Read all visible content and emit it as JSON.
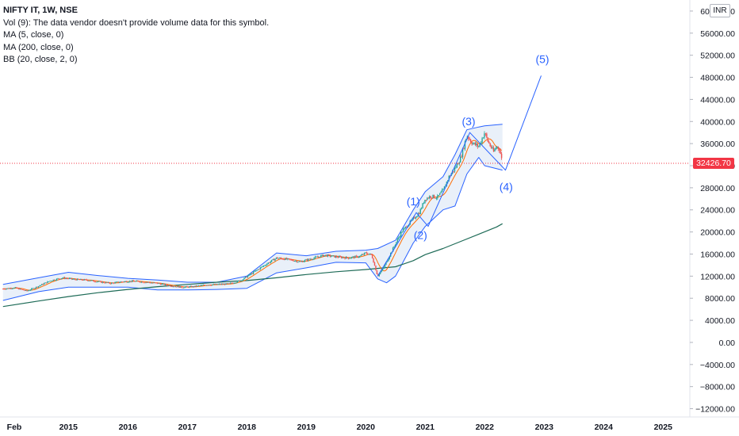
{
  "legend": {
    "symbol": "NIFTY IT, 1W, NSE",
    "volume": "Vol (9): The data vendor doesn't provide volume data for this symbol.",
    "ma5": "MA (5, close, 0)",
    "ma200": "MA (200, close, 0)",
    "bb": "BB (20, close, 2, 0)"
  },
  "currency_badge": "INR",
  "current_price_label": "32426.70",
  "colors": {
    "up": "#26a69a",
    "down": "#ef5350",
    "bb_band": "#2962ff",
    "bb_fill": "#e9f0f9",
    "ma5": "#ff6d00",
    "ma200": "#1e6b57",
    "wave": "#2962ff",
    "price_line": "#f23645"
  },
  "chart_data": {
    "type": "line",
    "title": "NIFTY IT, 1W, NSE",
    "y_unit": "INR",
    "ylim": [
      -13500,
      62000
    ],
    "xlim": [
      2013.85,
      2025.45
    ],
    "y_ticks": [
      60000,
      56000,
      52000,
      48000,
      44000,
      40000,
      36000,
      32000,
      28000,
      24000,
      20000,
      16000,
      12000,
      8000,
      4000,
      0,
      -4000,
      -8000,
      -12000
    ],
    "y_tick_labels": [
      "60000.00",
      "56000.00",
      "52000.00",
      "48000.00",
      "44000.00",
      "40000.00",
      "36000.00",
      "32000.00",
      "28000.00",
      "24000.00",
      "20000.00",
      "16000.00",
      "12000.00",
      "8000.00",
      "4000.00",
      "0.00",
      "−4000.00",
      "−8000.00",
      "−12000.00"
    ],
    "x_ticks": [
      2014.09,
      2015,
      2016,
      2017,
      2018,
      2019,
      2020,
      2021,
      2022,
      2023,
      2024,
      2025
    ],
    "x_tick_labels": [
      "Feb",
      "2015",
      "2016",
      "2017",
      "2018",
      "2019",
      "2020",
      "2021",
      "2022",
      "2023",
      "2024",
      "2025"
    ],
    "current_price": 32426.7,
    "series": [
      {
        "name": "NIFTY IT",
        "x": [
          2013.9,
          2014.1,
          2014.3,
          2014.5,
          2014.7,
          2014.9,
          2015.1,
          2015.3,
          2015.5,
          2015.7,
          2015.9,
          2016.1,
          2016.3,
          2016.5,
          2016.7,
          2016.9,
          2017.1,
          2017.3,
          2017.5,
          2017.7,
          2017.9,
          2018.1,
          2018.3,
          2018.5,
          2018.7,
          2018.9,
          2019.1,
          2019.3,
          2019.5,
          2019.7,
          2019.9,
          2020.0,
          2020.1,
          2020.2,
          2020.3,
          2020.45,
          2020.6,
          2020.75,
          2020.9,
          2021.0,
          2021.1,
          2021.2,
          2021.3,
          2021.4,
          2021.5,
          2021.6,
          2021.7,
          2021.8,
          2021.9,
          2022.0,
          2022.05,
          2022.15,
          2022.2,
          2022.25,
          2022.3
        ],
        "values": [
          9700,
          9900,
          9300,
          10200,
          11200,
          11700,
          11400,
          11300,
          11000,
          10700,
          11000,
          11100,
          10900,
          10700,
          10300,
          10000,
          10100,
          10400,
          10500,
          10600,
          11200,
          12600,
          14000,
          15300,
          15000,
          14600,
          15200,
          15800,
          15500,
          15300,
          15600,
          16200,
          15800,
          12000,
          13500,
          16800,
          20000,
          21800,
          23500,
          26000,
          26500,
          26200,
          27500,
          30000,
          31500,
          33500,
          37500,
          36000,
          35500,
          38000,
          36500,
          34500,
          35500,
          35000,
          32427
        ]
      },
      {
        "name": "BB upper",
        "x": [
          2013.9,
          2014.5,
          2015.0,
          2015.5,
          2016.0,
          2016.5,
          2017.0,
          2017.5,
          2018.0,
          2018.5,
          2019.0,
          2019.5,
          2020.0,
          2020.2,
          2020.5,
          2020.8,
          2021.0,
          2021.3,
          2021.5,
          2021.7,
          2021.9,
          2022.0,
          2022.3
        ],
        "values": [
          10500,
          11700,
          12700,
          12100,
          11600,
          11300,
          10900,
          10900,
          12000,
          16200,
          15700,
          16500,
          16700,
          17000,
          18500,
          24000,
          27300,
          30000,
          34000,
          38500,
          39000,
          39200,
          39500
        ]
      },
      {
        "name": "BB lower",
        "x": [
          2013.9,
          2014.5,
          2015.0,
          2015.5,
          2016.0,
          2016.5,
          2017.0,
          2017.5,
          2018.0,
          2018.5,
          2019.0,
          2019.5,
          2020.0,
          2020.2,
          2020.35,
          2020.5,
          2020.8,
          2021.0,
          2021.3,
          2021.5,
          2021.7,
          2021.9,
          2022.0,
          2022.3
        ],
        "values": [
          7600,
          9200,
          10000,
          10000,
          10000,
          9500,
          9500,
          9600,
          9800,
          12600,
          13500,
          14500,
          14400,
          11500,
          10800,
          12000,
          18000,
          21000,
          24000,
          24700,
          30500,
          33500,
          32000,
          31200
        ]
      },
      {
        "name": "MA 200",
        "x": [
          2013.9,
          2014.5,
          2015.0,
          2015.5,
          2016.0,
          2016.5,
          2017.0,
          2017.5,
          2018.0,
          2018.5,
          2019.0,
          2019.5,
          2020.0,
          2020.5,
          2020.8,
          2021.0,
          2021.3,
          2021.6,
          2021.9,
          2022.2,
          2022.3
        ],
        "values": [
          6500,
          7500,
          8300,
          9000,
          9600,
          10100,
          10500,
          10900,
          11200,
          11700,
          12300,
          12800,
          13200,
          13700,
          14800,
          15900,
          17000,
          18300,
          19600,
          20900,
          21500
        ]
      },
      {
        "name": "Wave path",
        "x": [
          2020.2,
          2020.85,
          2021.05,
          2021.75,
          2022.35,
          2022.95
        ],
        "values": [
          12000,
          23500,
          21000,
          38000,
          31200,
          48300
        ]
      }
    ],
    "annotations": [
      {
        "text": "(1)",
        "x": 2020.8,
        "y": 24800
      },
      {
        "text": "(2)",
        "x": 2020.92,
        "y": 18700
      },
      {
        "text": "(3)",
        "x": 2021.73,
        "y": 39300
      },
      {
        "text": "(4)",
        "x": 2022.36,
        "y": 27500
      },
      {
        "text": "(5)",
        "x": 2022.97,
        "y": 50600
      }
    ]
  }
}
